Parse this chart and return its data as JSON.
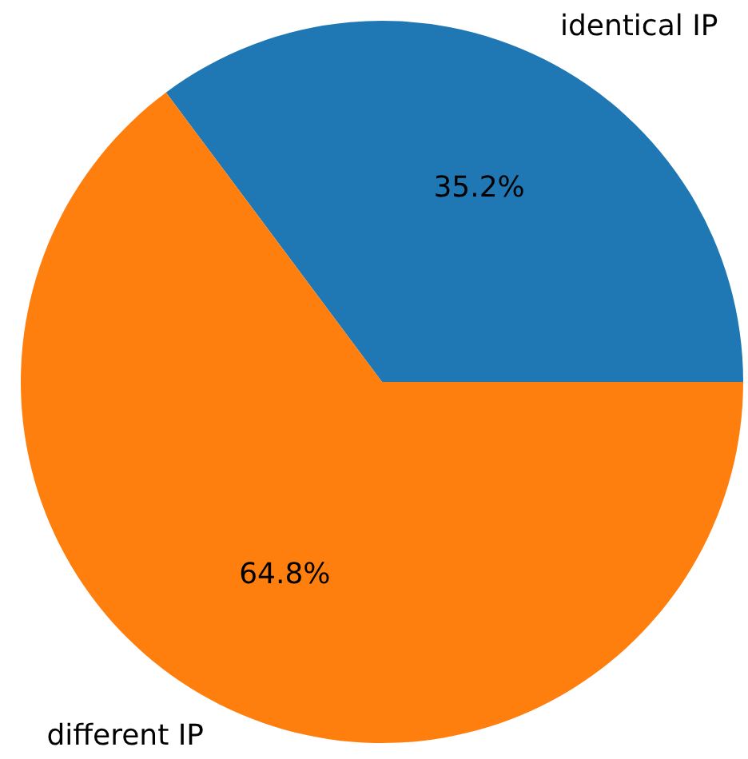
{
  "chart_data": {
    "type": "pie",
    "categories": [
      "identical IP",
      "different IP"
    ],
    "values": [
      35.2,
      64.8
    ],
    "colors": [
      "#1f77b4",
      "#ff7f0e"
    ],
    "value_labels": [
      "35.2%",
      "64.8%"
    ]
  }
}
